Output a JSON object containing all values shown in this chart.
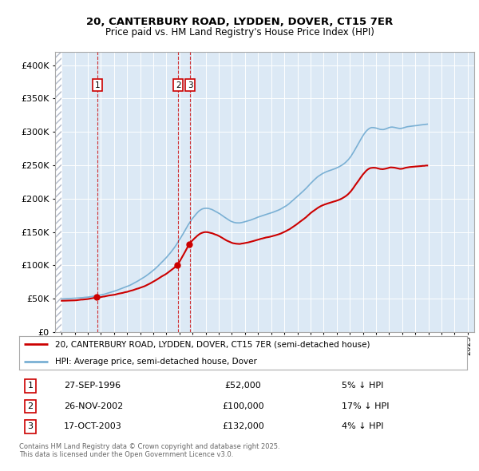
{
  "title1": "20, CANTERBURY ROAD, LYDDEN, DOVER, CT15 7ER",
  "title2": "Price paid vs. HM Land Registry's House Price Index (HPI)",
  "legend_line1": "20, CANTERBURY ROAD, LYDDEN, DOVER, CT15 7ER (semi-detached house)",
  "legend_line2": "HPI: Average price, semi-detached house, Dover",
  "transactions": [
    {
      "label": "1",
      "date": "27-SEP-1996",
      "price": 52000,
      "hpi_pct": "5% ↓ HPI",
      "x_year": 1996.75
    },
    {
      "label": "2",
      "date": "26-NOV-2002",
      "price": 100000,
      "hpi_pct": "17% ↓ HPI",
      "x_year": 2002.9
    },
    {
      "label": "3",
      "date": "17-OCT-2003",
      "price": 132000,
      "hpi_pct": "4% ↓ HPI",
      "x_year": 2003.8
    }
  ],
  "footer": "Contains HM Land Registry data © Crown copyright and database right 2025.\nThis data is licensed under the Open Government Licence v3.0.",
  "line_color_price": "#cc0000",
  "line_color_hpi": "#7ab0d4",
  "bg_color": "#dce9f5",
  "ylim": [
    0,
    420000
  ],
  "xlim_start": 1993.5,
  "xlim_end": 2025.5,
  "hpi_monthly": [
    49500,
    49600,
    49700,
    49700,
    49800,
    49800,
    49900,
    50000,
    50100,
    50200,
    50300,
    50400,
    50500,
    50700,
    50900,
    51100,
    51200,
    51400,
    51600,
    51700,
    51900,
    52100,
    52200,
    52400,
    52600,
    52800,
    53100,
    53400,
    53700,
    54000,
    54200,
    54500,
    54800,
    55100,
    55400,
    55600,
    56000,
    56400,
    56800,
    57200,
    57700,
    58200,
    58700,
    59200,
    59700,
    60200,
    60700,
    61200,
    61800,
    62300,
    62900,
    63500,
    64100,
    64700,
    65300,
    65900,
    66500,
    67100,
    67700,
    68300,
    69000,
    69700,
    70400,
    71200,
    72000,
    72800,
    73700,
    74600,
    75500,
    76400,
    77200,
    78100,
    79100,
    80000,
    81000,
    82000,
    83100,
    84200,
    85400,
    86600,
    87900,
    89200,
    90500,
    91800,
    93100,
    94500,
    95900,
    97400,
    99000,
    100600,
    102200,
    103900,
    105500,
    107200,
    108900,
    110600,
    112400,
    114300,
    116200,
    118200,
    120200,
    122300,
    124500,
    126700,
    129000,
    131400,
    133900,
    136400,
    139000,
    141700,
    144400,
    147200,
    150100,
    153000,
    155900,
    158700,
    161400,
    163900,
    166400,
    168700,
    171000,
    173100,
    175100,
    177000,
    178800,
    180500,
    182100,
    183300,
    184300,
    185100,
    185700,
    186000,
    186200,
    186200,
    186000,
    185700,
    185200,
    184700,
    184100,
    183300,
    182500,
    181600,
    180700,
    179700,
    178700,
    177700,
    176600,
    175500,
    174400,
    173200,
    172100,
    171000,
    169900,
    168800,
    167800,
    166900,
    166100,
    165500,
    165000,
    164600,
    164400,
    164300,
    164200,
    164200,
    164400,
    164700,
    165000,
    165400,
    165800,
    166300,
    166700,
    167200,
    167700,
    168300,
    168900,
    169500,
    170100,
    170700,
    171300,
    171900,
    172500,
    173100,
    173700,
    174300,
    174800,
    175400,
    175900,
    176500,
    177000,
    177500,
    178000,
    178500,
    179000,
    179600,
    180200,
    180800,
    181400,
    182000,
    182700,
    183500,
    184300,
    185100,
    186000,
    186900,
    187900,
    188900,
    189900,
    191000,
    192200,
    193400,
    194700,
    196000,
    197400,
    198800,
    200300,
    201700,
    203200,
    204700,
    206200,
    207700,
    209200,
    210700,
    212300,
    213900,
    215500,
    217200,
    219000,
    220700,
    222500,
    224200,
    225900,
    227500,
    229000,
    230500,
    231900,
    233200,
    234400,
    235500,
    236500,
    237500,
    238400,
    239200,
    239900,
    240600,
    241200,
    241800,
    242400,
    243000,
    243500,
    244100,
    244700,
    245300,
    246000,
    246700,
    247500,
    248400,
    249300,
    250300,
    251400,
    252600,
    254000,
    255600,
    257300,
    259200,
    261300,
    263600,
    266100,
    268700,
    271500,
    274400,
    277400,
    280300,
    283200,
    286100,
    288900,
    291700,
    294400,
    296900,
    299200,
    301200,
    302900,
    304300,
    305400,
    306200,
    306600,
    306700,
    306600,
    306300,
    305900,
    305400,
    304800,
    304400,
    304000,
    303800,
    303700,
    303800,
    304200,
    304700,
    305300,
    306000,
    306600,
    307100,
    307300,
    307300,
    307100,
    306800,
    306400,
    306000,
    305600,
    305300,
    305100,
    305200,
    305400,
    305800,
    306300,
    306800,
    307200,
    307600,
    307800,
    308000,
    308200,
    308400,
    308600,
    308800,
    309000,
    309200,
    309400,
    309600,
    309800,
    310000,
    310200,
    310400,
    310600,
    310800,
    311000,
    311200
  ]
}
